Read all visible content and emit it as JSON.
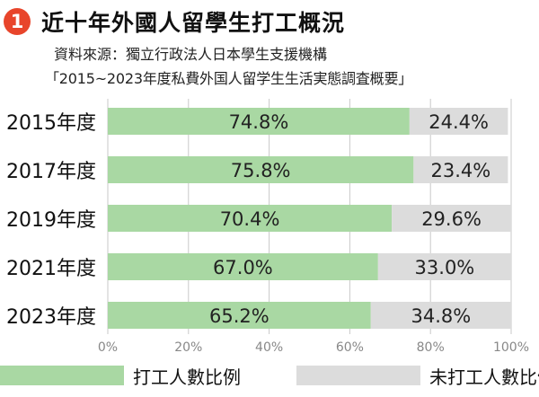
{
  "header": {
    "badge": "1",
    "title": "近十年外國人留學生打工概況",
    "source": "資料來源：獨立行政法人日本學生支援機構",
    "source_detail": "「2015~2023年度私費外国人留学生生活実態調査概要」"
  },
  "colors": {
    "work": "#a9d8a3",
    "nowork": "#dcdcdc",
    "badge": "#e8452b"
  },
  "chart_data": {
    "type": "bar",
    "orientation": "horizontal",
    "stacked": true,
    "percent": true,
    "categories": [
      "2015年度",
      "2017年度",
      "2019年度",
      "2021年度",
      "2023年度"
    ],
    "series": [
      {
        "name": "打工人數比例",
        "values": [
          74.8,
          75.8,
          70.4,
          67.0,
          65.2
        ],
        "labels": [
          "74.8%",
          "75.8%",
          "70.4%",
          "67.0%",
          "65.2%"
        ]
      },
      {
        "name": "未打工人數比例",
        "values": [
          24.4,
          23.4,
          29.6,
          33.0,
          34.8
        ],
        "labels": [
          "24.4%",
          "23.4%",
          "29.6%",
          "33.0%",
          "34.8%"
        ]
      }
    ],
    "xlim": [
      0,
      100
    ],
    "xticks": [
      "0%",
      "20%",
      "40%",
      "60%",
      "80%",
      "100%"
    ],
    "grid": true,
    "legend_position": "bottom"
  }
}
